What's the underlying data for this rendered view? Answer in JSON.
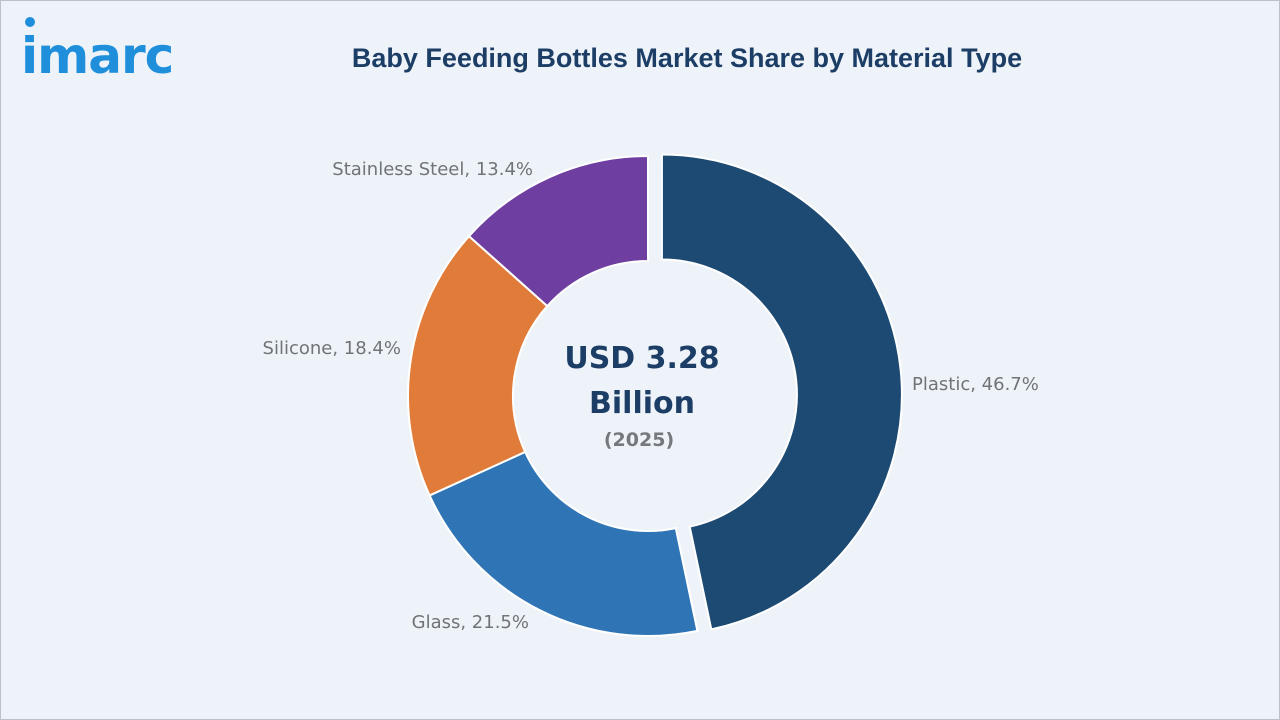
{
  "logo_text": "imarc",
  "chart_data": {
    "type": "pie",
    "title": "Baby Feeding Bottles Market Share by Material Type",
    "categories": [
      "Plastic",
      "Glass",
      "Silicone",
      "Stainless Steel"
    ],
    "values": [
      46.7,
      21.5,
      18.4,
      13.4
    ],
    "unit": "%",
    "data_labels": [
      "Plastic, 46.7%",
      "Glass, 21.5%",
      "Silicone, 18.4%",
      "Stainless Steel, 13.4%"
    ],
    "colors": [
      "#1d4a73",
      "#2f75b5",
      "#e07b39",
      "#6e3fa0"
    ],
    "donut": true,
    "exploded": "Plastic",
    "center_text": {
      "line1": "USD 3.28",
      "line2": "Billion",
      "line3": "(2025)"
    },
    "legend": "none"
  }
}
